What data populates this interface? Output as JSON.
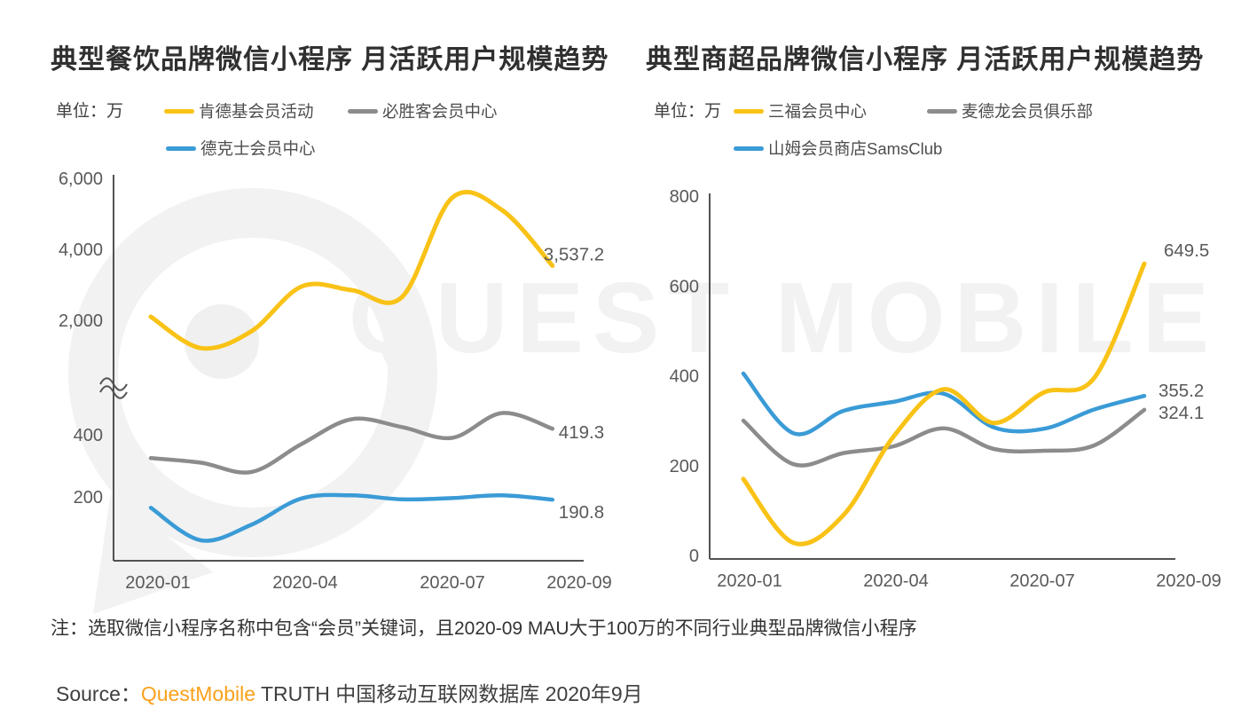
{
  "watermark": {
    "text": "QUEST MOBILE"
  },
  "note": "注：选取微信小程序名称中包含“会员”关键词，且2020-09 MAU大于100万的不同行业典型品牌微信小程序",
  "source": {
    "prefix": "Source：",
    "brand": "QuestMobile",
    "rest": " TRUTH 中国移动互联网数据库 2020年9月",
    "brand_color": "#F9A11B"
  },
  "colors": {
    "axis": "#525252",
    "tick_text": "#595959",
    "end_label_text": "#595959"
  },
  "chart_data": [
    {
      "type": "line",
      "title": "典型餐饮品牌微信小程序 月活跃用户规模趋势",
      "unit_label": "单位：万",
      "x": [
        "2020-01",
        "2020-02",
        "2020-03",
        "2020-04",
        "2020-05",
        "2020-06",
        "2020-07",
        "2020-08",
        "2020-09"
      ],
      "x_tick_labels": [
        "2020-01",
        "2020-04",
        "2020-07",
        "2020-09"
      ],
      "y_axis": {
        "broken": true,
        "upper_ticks": [
          {
            "v": 6000,
            "label": "6,000"
          },
          {
            "v": 4000,
            "label": "4,000"
          },
          {
            "v": 2000,
            "label": "2,000"
          }
        ],
        "lower_ticks": [
          {
            "v": 400,
            "label": "400"
          },
          {
            "v": 200,
            "label": "200"
          }
        ]
      },
      "grid": false,
      "legend_position": "top",
      "series": [
        {
          "name": "肯德基会员活动",
          "color": "#F9C216",
          "values": [
            2100,
            1500,
            1800,
            2950,
            2850,
            2650,
            5450,
            5100,
            3537.2
          ],
          "end_label": "3,537.2"
        },
        {
          "name": "必胜客会员中心",
          "color": "#8C8C8C",
          "values": [
            325,
            310,
            280,
            370,
            450,
            425,
            390,
            470,
            419.3
          ],
          "end_label": "419.3"
        },
        {
          "name": "德克士会员中心",
          "color": "#3A9BD6",
          "values": [
            165,
            60,
            110,
            195,
            205,
            192,
            196,
            205,
            190.8
          ],
          "end_label": "190.8"
        }
      ]
    },
    {
      "type": "line",
      "title": "典型商超品牌微信小程序 月活跃用户规模趋势",
      "unit_label": "单位：万",
      "x": [
        "2020-01",
        "2020-02",
        "2020-03",
        "2020-04",
        "2020-05",
        "2020-06",
        "2020-07",
        "2020-08",
        "2020-09"
      ],
      "x_tick_labels": [
        "2020-01",
        "2020-04",
        "2020-07",
        "2020-09"
      ],
      "y_axis": {
        "broken": false,
        "ylim": [
          0,
          800
        ],
        "ticks": [
          {
            "v": 0,
            "label": "0"
          },
          {
            "v": 200,
            "label": "200"
          },
          {
            "v": 400,
            "label": "400"
          },
          {
            "v": 600,
            "label": "600"
          },
          {
            "v": 800,
            "label": "800"
          }
        ]
      },
      "grid": false,
      "legend_position": "top",
      "series": [
        {
          "name": "三福会员中心",
          "color": "#F9C216",
          "values": [
            170,
            28,
            90,
            265,
            370,
            295,
            363,
            395,
            649.5
          ],
          "end_label": "649.5"
        },
        {
          "name": "麦德龙会员俱乐部",
          "color": "#8C8C8C",
          "values": [
            300,
            203,
            228,
            243,
            283,
            237,
            233,
            245,
            324.1
          ],
          "end_label": "324.1"
        },
        {
          "name": "山姆会员商店SamsClub",
          "color": "#3A9BD6",
          "values": [
            405,
            272,
            322,
            342,
            360,
            285,
            282,
            325,
            355.2
          ],
          "end_label": "355.2"
        }
      ]
    }
  ]
}
